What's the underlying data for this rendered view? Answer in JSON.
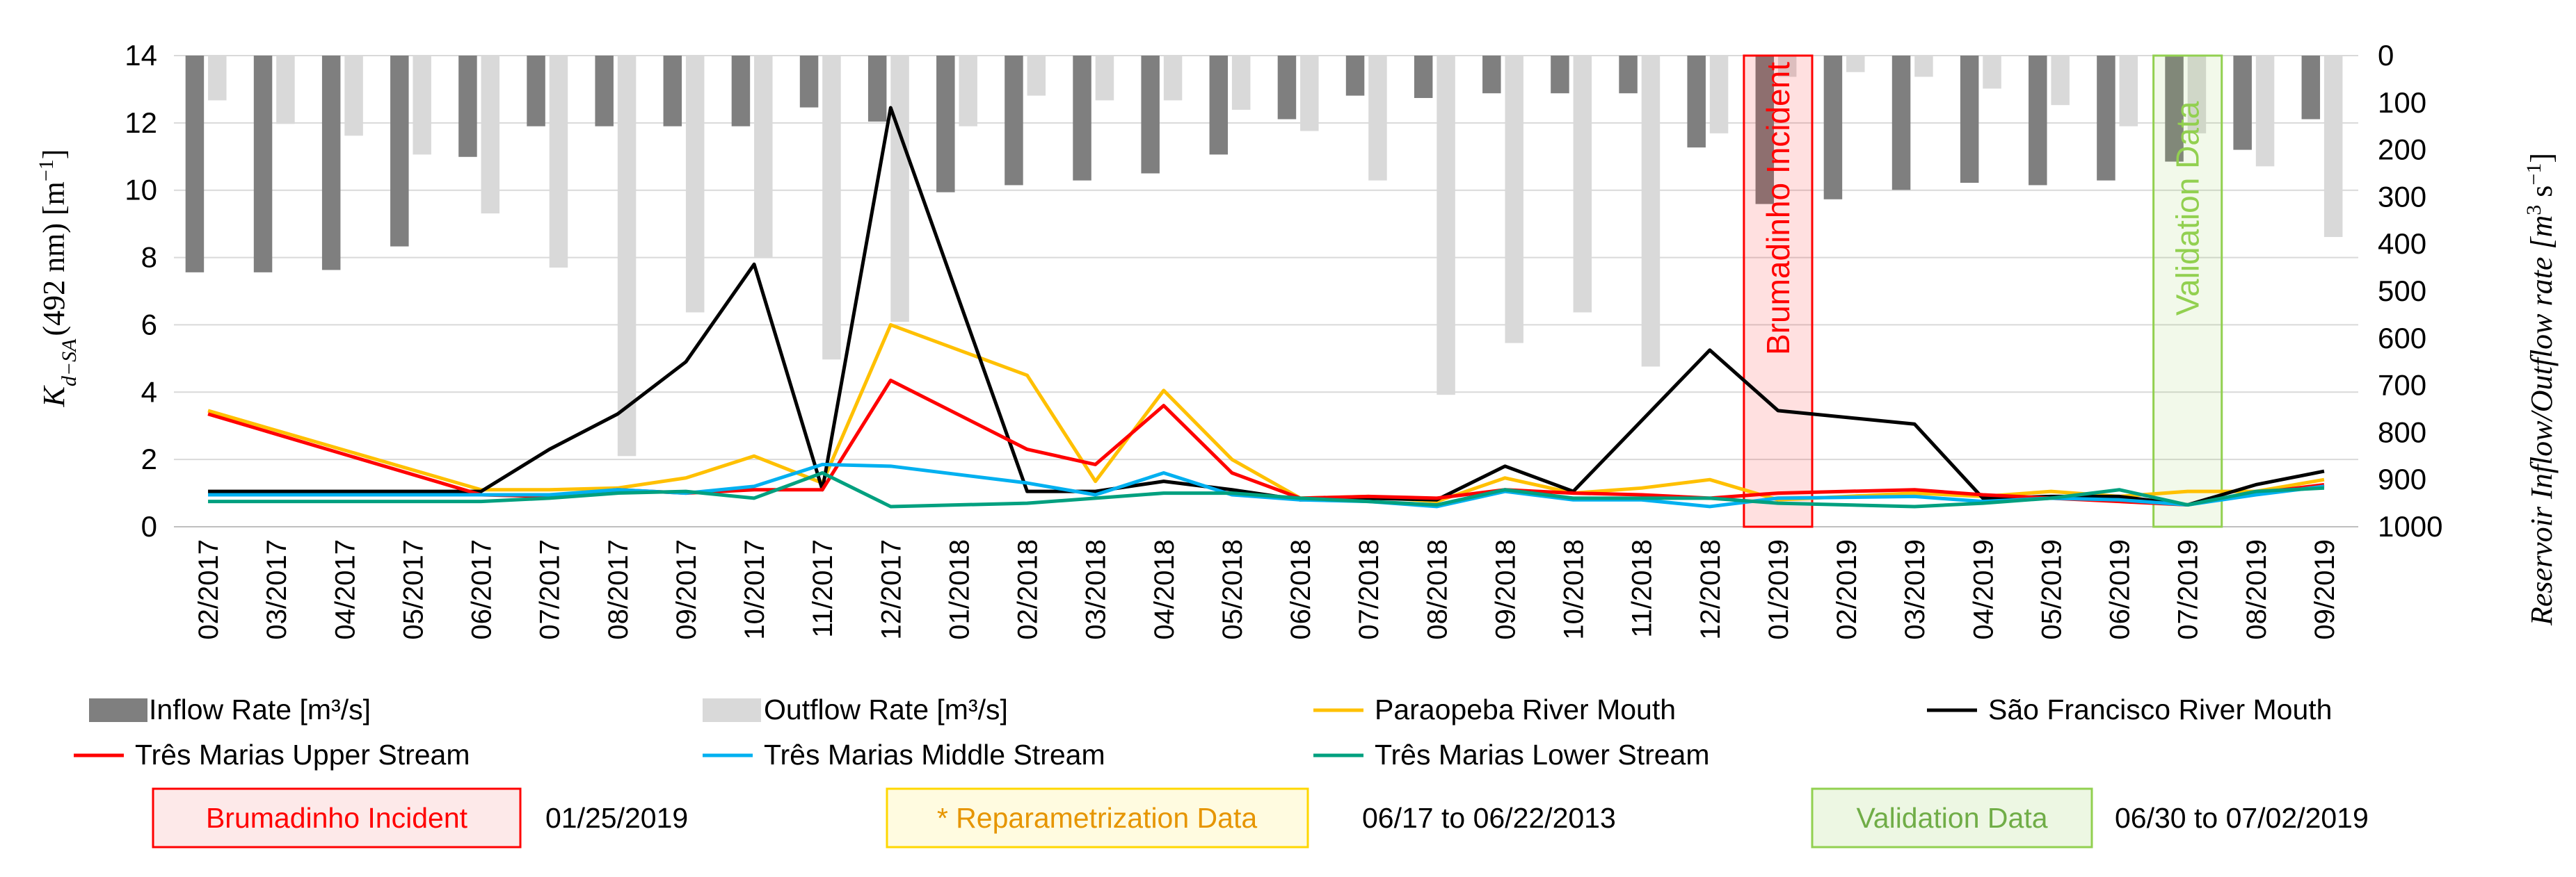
{
  "chart_data": {
    "type": "bar+line",
    "title": "",
    "categories": [
      "02/2017",
      "03/2017",
      "04/2017",
      "05/2017",
      "06/2017",
      "07/2017",
      "08/2017",
      "09/2017",
      "10/2017",
      "11/2017",
      "12/2017",
      "01/2018",
      "02/2018",
      "03/2018",
      "04/2018",
      "05/2018",
      "06/2018",
      "07/2018",
      "08/2018",
      "09/2018",
      "10/2018",
      "11/2018",
      "12/2018",
      "01/2019",
      "02/2019",
      "03/2019",
      "04/2019",
      "05/2019",
      "06/2019",
      "07/2019",
      "08/2019",
      "09/2019"
    ],
    "ylabel_left": "K",
    "ylabel_left_sub": "d−SA",
    "ylabel_left_rest": "(492 nm) [m",
    "ylabel_left_sup": "−1",
    "ylabel_left_end": "]",
    "ylabel_right": "Reservoir Inflow/Outflow rate [m",
    "ylabel_right_sup": "3",
    "ylabel_right_mid": " s",
    "ylabel_right_sup2": "−1",
    "ylabel_right_end": "]",
    "ylim_left": [
      0,
      14
    ],
    "ylim_right": [
      0,
      1000
    ],
    "right_axis_inverted": true,
    "yticks_left": [
      "0",
      "2",
      "4",
      "6",
      "8",
      "10",
      "12",
      "14"
    ],
    "yticks_right": [
      "0",
      "100",
      "200",
      "300",
      "400",
      "500",
      "600",
      "700",
      "800",
      "900",
      "1000"
    ],
    "grid": true,
    "bar_series": [
      {
        "name": "Inflow Rate [m³/s]",
        "color": "#7f7f7f",
        "values": [
          460,
          460,
          455,
          405,
          215,
          150,
          150,
          150,
          150,
          110,
          140,
          290,
          275,
          265,
          250,
          210,
          135,
          85,
          90,
          80,
          80,
          80,
          195,
          315,
          305,
          285,
          270,
          275,
          265,
          225,
          200,
          135
        ]
      },
      {
        "name": "Outflow Rate [m³/s]",
        "color": "#d9d9d9",
        "values": [
          95,
          145,
          170,
          210,
          335,
          450,
          850,
          545,
          430,
          645,
          565,
          150,
          85,
          95,
          95,
          115,
          160,
          265,
          720,
          610,
          545,
          660,
          165,
          45,
          35,
          45,
          70,
          105,
          150,
          165,
          235,
          385
        ]
      }
    ],
    "line_series": [
      {
        "name": "Paraopeba River Mouth",
        "color": "#ffc000",
        "values": [
          3.45,
          null,
          null,
          null,
          1.1,
          1.1,
          1.15,
          1.45,
          2.1,
          1.3,
          6.0,
          null,
          4.5,
          1.35,
          4.05,
          2.0,
          0.85,
          0.9,
          0.75,
          1.45,
          1.0,
          1.15,
          1.4,
          0.8,
          null,
          1.0,
          0.9,
          1.05,
          0.9,
          1.05,
          1.05,
          1.4
        ]
      },
      {
        "name": "São Francisco River Mouth",
        "color": "#000000",
        "values": [
          1.05,
          null,
          null,
          null,
          1.05,
          2.3,
          3.35,
          4.9,
          7.8,
          1.1,
          12.45,
          null,
          1.05,
          1.05,
          1.35,
          1.1,
          0.8,
          0.85,
          0.8,
          1.8,
          1.05,
          null,
          5.25,
          3.45,
          null,
          3.05,
          0.85,
          0.9,
          0.9,
          0.65,
          1.25,
          1.65
        ]
      },
      {
        "name": "Três Marias Upper Stream",
        "color": "#ff0000",
        "values": [
          3.35,
          null,
          null,
          null,
          0.95,
          0.9,
          1.1,
          1.0,
          1.1,
          1.1,
          4.35,
          null,
          2.3,
          1.85,
          3.6,
          1.6,
          0.85,
          0.9,
          0.85,
          1.1,
          1.0,
          0.95,
          0.85,
          1.0,
          null,
          1.1,
          0.95,
          0.85,
          0.75,
          0.65,
          1.0,
          1.25
        ]
      },
      {
        "name": "Três Marias Middle Stream",
        "color": "#00b0f0",
        "values": [
          0.95,
          null,
          null,
          null,
          0.95,
          0.95,
          1.1,
          1.0,
          1.2,
          1.85,
          1.8,
          null,
          1.3,
          0.95,
          1.6,
          0.95,
          0.8,
          0.75,
          0.6,
          1.05,
          0.8,
          0.8,
          0.6,
          0.85,
          null,
          0.9,
          0.75,
          0.85,
          0.8,
          0.65,
          0.95,
          1.2
        ]
      },
      {
        "name": "Três Marias Lower Stream",
        "color": "#00a07f",
        "values": [
          0.75,
          null,
          null,
          null,
          0.75,
          0.85,
          1.0,
          1.05,
          0.85,
          1.6,
          0.6,
          null,
          0.7,
          0.85,
          1.0,
          1.0,
          0.85,
          0.75,
          0.65,
          1.1,
          0.85,
          0.85,
          0.85,
          0.7,
          null,
          0.6,
          0.7,
          0.85,
          1.1,
          0.65,
          1.05,
          1.15
        ]
      }
    ],
    "highlights": [
      {
        "label": "Brumadinho Incident",
        "category_index": 23,
        "color": "#ff0000"
      },
      {
        "label": "Validation Data",
        "category_index": 29,
        "color": "#92d050"
      }
    ]
  },
  "legend": {
    "inflow": "Inflow Rate [m³/s]",
    "outflow": "Outflow Rate [m³/s]",
    "paraopeba": "Paraopeba River Mouth",
    "saofrancisco": "São Francisco River Mouth",
    "upper": "Três Marias Upper Stream",
    "middle": "Três Marias Middle Stream",
    "lower": "Três Marias Lower Stream"
  },
  "notes": {
    "brumadinho_label": "Brumadinho Incident",
    "brumadinho_date": "01/25/2019",
    "reparam_label": "* Reparametrization Data",
    "reparam_date": "06/17 to 06/22/2013",
    "validation_label": "Validation Data",
    "validation_date": "06/30 to 07/02/2019"
  },
  "colors": {
    "red": "#ff0000",
    "red_fill": "#fde9e9",
    "yellow_border": "#ffd700",
    "yellow_fill": "#fffbe0",
    "orange_text": "#e69500",
    "green_border": "#92d050",
    "green_fill": "#edf7e3",
    "green_text": "#70ad47"
  }
}
